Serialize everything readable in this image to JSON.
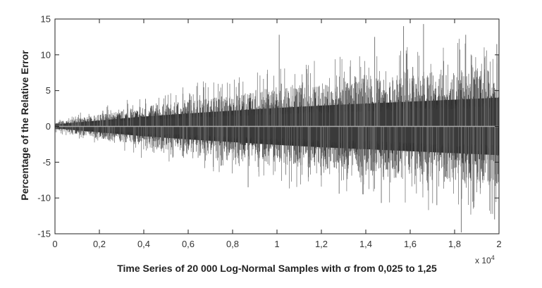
{
  "chart_data": {
    "type": "line",
    "title": "",
    "xlabel": "Time Series of 20 000 Log-Normal Samples with σ from 0,025 to 1,25",
    "ylabel": "Percentage of the Relative Error",
    "x_exponent_label": "x 10",
    "x_exponent_power": "4",
    "xlim": [
      0,
      2
    ],
    "ylim": [
      -15,
      15
    ],
    "x_ticks": [
      "0",
      "0,2",
      "0,4",
      "0,6",
      "0,8",
      "1",
      "1,2",
      "1,4",
      "1,6",
      "1,8",
      "2"
    ],
    "x_tick_values": [
      0,
      0.2,
      0.4,
      0.6,
      0.8,
      1.0,
      1.2,
      1.4,
      1.6,
      1.8,
      2.0
    ],
    "y_ticks": [
      "15",
      "10",
      "5",
      "0",
      "-5",
      "-10",
      "-15"
    ],
    "y_tick_values": [
      15,
      10,
      5,
      0,
      -5,
      -10,
      -15
    ],
    "grid": false,
    "series": [
      {
        "n_samples": 20000,
        "color": "#333333",
        "envelope": {
          "x": [
            0,
            0.2,
            0.4,
            0.6,
            0.8,
            1.0,
            1.2,
            1.4,
            1.6,
            1.8,
            2.0
          ],
          "upper": [
            0.5,
            1.5,
            2.5,
            3.3,
            4.0,
            4.7,
            5.3,
            5.8,
            6.3,
            6.8,
            7.3
          ],
          "lower": [
            -0.5,
            -1.5,
            -2.5,
            -3.3,
            -4.0,
            -4.7,
            -5.3,
            -5.8,
            -6.3,
            -6.8,
            -7.3
          ]
        },
        "peaks": [
          {
            "x": 1.01,
            "y": 12.8
          },
          {
            "x": 1.44,
            "y": 12.5
          },
          {
            "x": 1.57,
            "y": 14.0
          },
          {
            "x": 1.66,
            "y": 14.3
          },
          {
            "x": 1.85,
            "y": 12.8
          },
          {
            "x": 1.99,
            "y": 11.5
          },
          {
            "x": 0.87,
            "y": -8.5
          },
          {
            "x": 1.28,
            "y": -9.4
          },
          {
            "x": 1.47,
            "y": -10.7
          },
          {
            "x": 1.72,
            "y": -11.0
          },
          {
            "x": 1.83,
            "y": -14.8
          },
          {
            "x": 1.98,
            "y": -13.0
          }
        ]
      },
      {
        "type": "zero-line",
        "y": 0,
        "color": "#aaaaaa"
      }
    ]
  }
}
